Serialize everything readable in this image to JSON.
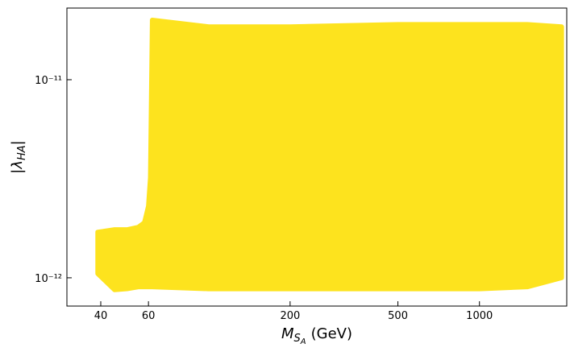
{
  "chart_data": {
    "type": "area",
    "xlabel": {
      "symbol": "M",
      "sub": "S",
      "subsub": "A",
      "unit": "(GeV)"
    },
    "ylabel": {
      "open": "|λ",
      "sub": "HA",
      "close": "|"
    },
    "x": [
      39,
      45,
      50,
      55,
      58,
      60,
      61,
      62,
      100,
      200,
      500,
      1000,
      1500,
      2010
    ],
    "upper": [
      1.7e-12,
      1.75e-12,
      1.75e-12,
      1.8e-12,
      1.9e-12,
      2.3e-12,
      3.2e-12,
      2e-11,
      1.85e-11,
      1.85e-11,
      1.9e-11,
      1.9e-11,
      1.9e-11,
      1.85e-11
    ],
    "lower": [
      1.05e-12,
      8.7e-13,
      8.8e-13,
      9e-13,
      9e-13,
      9e-13,
      9e-13,
      9e-13,
      8.8e-13,
      8.8e-13,
      8.8e-13,
      8.8e-13,
      9e-13,
      1e-12
    ],
    "color": "#fde31e",
    "xscale": "log",
    "yscale": "log",
    "xlim": [
      30,
      2100
    ],
    "ylim": [
      7.2e-13,
      2.3e-11
    ],
    "xticks": [
      40,
      60,
      200,
      500,
      1000
    ],
    "yticks": [
      {
        "value": 1e-12,
        "label": "10⁻¹²"
      },
      {
        "value": 1e-11,
        "label": "10⁻¹¹"
      }
    ]
  }
}
